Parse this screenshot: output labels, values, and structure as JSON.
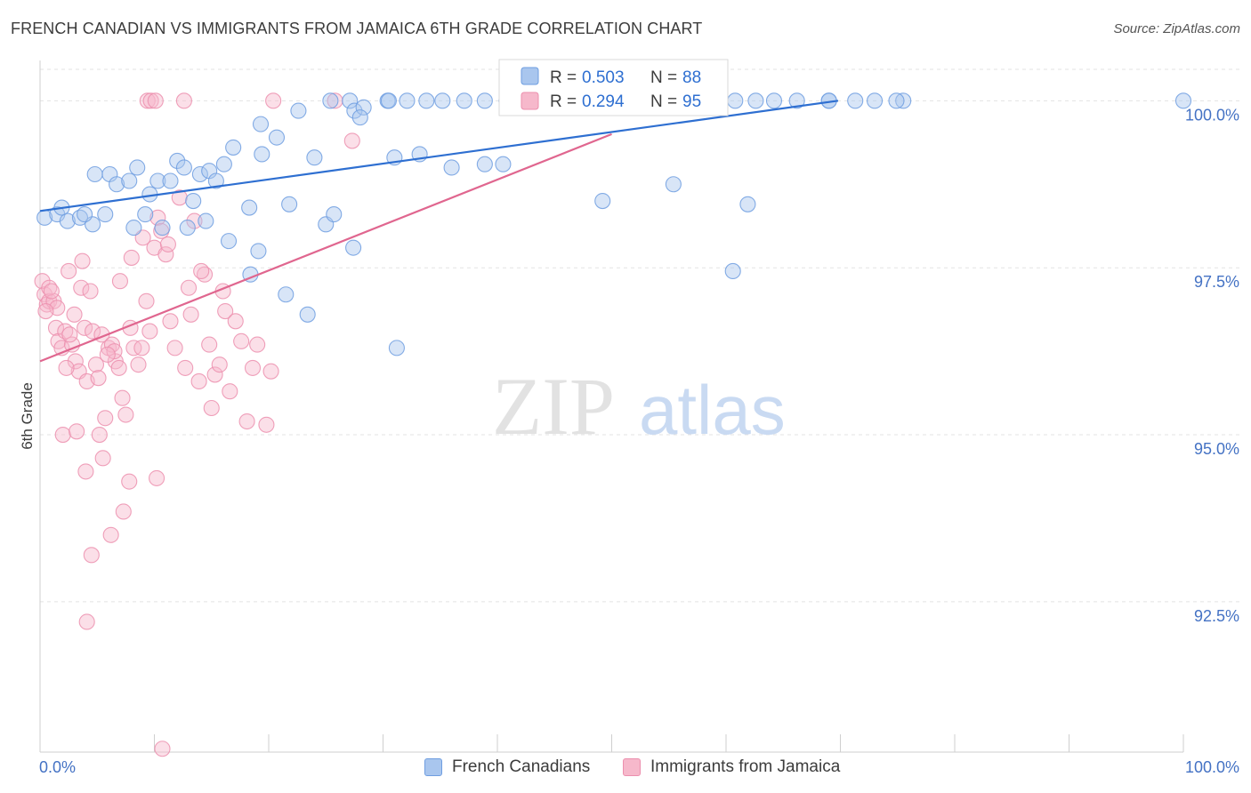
{
  "header": {
    "title": "FRENCH CANADIAN VS IMMIGRANTS FROM JAMAICA 6TH GRADE CORRELATION CHART",
    "source": "Source: ZipAtlas.com"
  },
  "watermark": {
    "part1": "ZIP",
    "part2": "atlas"
  },
  "colors": {
    "blue_fill": "#a9c6ee",
    "blue_stroke": "#6f9ee0",
    "blue_line": "#2e6fd1",
    "pink_fill": "#f6b8cb",
    "pink_stroke": "#ec8fae",
    "pink_line": "#e0668f",
    "axis_text": "#4472c4"
  },
  "chart_data": {
    "type": "scatter",
    "title": "FRENCH CANADIAN VS IMMIGRANTS FROM JAMAICA 6TH GRADE CORRELATION CHART",
    "xlabel": "",
    "ylabel": "6th Grade",
    "xlim": [
      0,
      100
    ],
    "ylim": [
      90.25,
      100.55
    ],
    "x_tick_labels": [
      "0.0%",
      "100.0%"
    ],
    "y_ticks": [
      92.5,
      95.0,
      97.5,
      100.0
    ],
    "y_tick_labels": [
      "92.5%",
      "95.0%",
      "97.5%",
      "100.0%"
    ],
    "grid": true,
    "legend_stats": [
      {
        "r_label": "R =",
        "r_value": "0.503",
        "n_label": "N =",
        "n_value": "88"
      },
      {
        "r_label": "R =",
        "r_value": "0.294",
        "n_label": "N =",
        "n_value": "95"
      }
    ],
    "series": [
      {
        "name": "French Canadians",
        "color": "blue",
        "trend": {
          "x": [
            0,
            69.8
          ],
          "y": [
            98.35,
            100.0
          ]
        },
        "points": [
          [
            0.4,
            98.25
          ],
          [
            1.5,
            98.3
          ],
          [
            2.4,
            98.2
          ],
          [
            3.5,
            98.25
          ],
          [
            4.6,
            98.15
          ],
          [
            3.9,
            98.3
          ],
          [
            1.9,
            98.4
          ],
          [
            5.7,
            98.3
          ],
          [
            4.8,
            98.9
          ],
          [
            6.1,
            98.9
          ],
          [
            6.7,
            98.75
          ],
          [
            7.8,
            98.8
          ],
          [
            8.5,
            99.0
          ],
          [
            9.6,
            98.6
          ],
          [
            10.3,
            98.8
          ],
          [
            11.4,
            98.8
          ],
          [
            12.0,
            99.1
          ],
          [
            12.6,
            99.0
          ],
          [
            13.4,
            98.5
          ],
          [
            14.0,
            98.9
          ],
          [
            14.8,
            98.95
          ],
          [
            15.4,
            98.8
          ],
          [
            16.1,
            99.05
          ],
          [
            9.2,
            98.3
          ],
          [
            10.7,
            98.1
          ],
          [
            12.9,
            98.1
          ],
          [
            14.5,
            98.2
          ],
          [
            16.5,
            97.9
          ],
          [
            16.9,
            99.3
          ],
          [
            18.3,
            98.4
          ],
          [
            19.4,
            99.2
          ],
          [
            19.3,
            99.65
          ],
          [
            20.7,
            99.45
          ],
          [
            21.8,
            98.45
          ],
          [
            22.6,
            99.85
          ],
          [
            25.0,
            98.15
          ],
          [
            25.4,
            100.0
          ],
          [
            27.1,
            100.0
          ],
          [
            30.4,
            100.0
          ],
          [
            32.1,
            100.0
          ],
          [
            33.8,
            100.0
          ],
          [
            37.1,
            100.0
          ],
          [
            38.9,
            100.0
          ],
          [
            40.8,
            100.0
          ],
          [
            42.9,
            100.0
          ],
          [
            44.9,
            100.0
          ],
          [
            45.4,
            100.0
          ],
          [
            46.7,
            100.0
          ],
          [
            48.6,
            100.0
          ],
          [
            50.5,
            100.0
          ],
          [
            52.1,
            100.0
          ],
          [
            54.5,
            100.0
          ],
          [
            56.6,
            100.0
          ],
          [
            58.3,
            100.0
          ],
          [
            60.8,
            100.0
          ],
          [
            62.6,
            100.0
          ],
          [
            64.2,
            100.0
          ],
          [
            66.2,
            100.0
          ],
          [
            69.0,
            100.0
          ],
          [
            71.3,
            100.0
          ],
          [
            73.0,
            100.0
          ],
          [
            75.5,
            100.0
          ],
          [
            30.5,
            100.0
          ],
          [
            24.0,
            99.15
          ],
          [
            27.5,
            99.85
          ],
          [
            28.3,
            99.9
          ],
          [
            28.0,
            99.75
          ],
          [
            31.0,
            99.15
          ],
          [
            33.2,
            99.2
          ],
          [
            36.0,
            99.0
          ],
          [
            38.9,
            99.05
          ],
          [
            40.5,
            99.05
          ],
          [
            49.2,
            98.5
          ],
          [
            55.4,
            98.75
          ],
          [
            60.6,
            97.45
          ],
          [
            61.9,
            98.45
          ],
          [
            69.0,
            100.0
          ],
          [
            74.9,
            100.0
          ],
          [
            100.0,
            100.0
          ],
          [
            27.4,
            97.8
          ],
          [
            21.5,
            97.1
          ],
          [
            23.4,
            96.8
          ],
          [
            31.2,
            96.3
          ],
          [
            18.4,
            97.4
          ],
          [
            25.7,
            98.3
          ],
          [
            19.1,
            97.75
          ],
          [
            8.2,
            98.1
          ],
          [
            35.2,
            100.0
          ]
        ]
      },
      {
        "name": "Immigrants from Jamaica",
        "color": "pink",
        "trend": {
          "x": [
            0,
            50.0
          ],
          "y": [
            96.1,
            99.5
          ]
        },
        "points": [
          [
            0.2,
            97.3
          ],
          [
            0.4,
            97.1
          ],
          [
            0.6,
            96.95
          ],
          [
            0.8,
            97.0
          ],
          [
            1.4,
            96.6
          ],
          [
            1.6,
            96.4
          ],
          [
            1.9,
            96.3
          ],
          [
            2.2,
            96.55
          ],
          [
            2.5,
            97.45
          ],
          [
            2.8,
            96.35
          ],
          [
            3.1,
            96.1
          ],
          [
            3.4,
            95.95
          ],
          [
            3.6,
            97.2
          ],
          [
            3.9,
            96.6
          ],
          [
            4.1,
            95.8
          ],
          [
            4.4,
            97.15
          ],
          [
            4.6,
            96.55
          ],
          [
            4.9,
            96.05
          ],
          [
            5.1,
            95.85
          ],
          [
            5.4,
            96.5
          ],
          [
            5.7,
            95.25
          ],
          [
            6.0,
            96.3
          ],
          [
            6.3,
            96.35
          ],
          [
            6.6,
            96.1
          ],
          [
            6.9,
            96.0
          ],
          [
            7.2,
            95.55
          ],
          [
            7.5,
            95.3
          ],
          [
            7.9,
            96.6
          ],
          [
            8.2,
            96.3
          ],
          [
            8.6,
            96.05
          ],
          [
            8.9,
            96.3
          ],
          [
            9.3,
            97.0
          ],
          [
            9.6,
            96.55
          ],
          [
            10.0,
            97.8
          ],
          [
            10.3,
            98.25
          ],
          [
            10.6,
            98.05
          ],
          [
            11.0,
            97.7
          ],
          [
            11.4,
            96.7
          ],
          [
            11.8,
            96.3
          ],
          [
            12.2,
            98.55
          ],
          [
            12.7,
            96.0
          ],
          [
            13.0,
            97.2
          ],
          [
            13.5,
            98.2
          ],
          [
            13.9,
            95.8
          ],
          [
            14.4,
            97.4
          ],
          [
            14.8,
            96.35
          ],
          [
            15.3,
            95.9
          ],
          [
            15.7,
            96.05
          ],
          [
            16.2,
            96.85
          ],
          [
            16.6,
            95.65
          ],
          [
            17.1,
            96.7
          ],
          [
            17.6,
            96.4
          ],
          [
            18.1,
            95.2
          ],
          [
            18.6,
            96.0
          ],
          [
            2.0,
            95.0
          ],
          [
            3.2,
            95.05
          ],
          [
            4.0,
            94.45
          ],
          [
            5.5,
            94.65
          ],
          [
            6.2,
            93.5
          ],
          [
            7.3,
            93.85
          ],
          [
            4.5,
            93.2
          ],
          [
            4.1,
            92.2
          ],
          [
            9.4,
            100.0
          ],
          [
            9.7,
            100.0
          ],
          [
            10.1,
            100.0
          ],
          [
            12.6,
            100.0
          ],
          [
            20.4,
            100.0
          ],
          [
            25.8,
            100.0
          ],
          [
            27.3,
            99.4
          ],
          [
            5.2,
            95.0
          ],
          [
            7.8,
            94.3
          ],
          [
            10.2,
            94.35
          ],
          [
            10.7,
            90.3
          ],
          [
            1.2,
            97.0
          ],
          [
            1.5,
            96.9
          ],
          [
            0.8,
            97.2
          ],
          [
            2.6,
            96.5
          ],
          [
            3.7,
            97.6
          ],
          [
            6.5,
            96.25
          ],
          [
            7.0,
            97.3
          ],
          [
            8.0,
            97.65
          ],
          [
            9.0,
            97.95
          ],
          [
            11.2,
            97.85
          ],
          [
            13.2,
            96.8
          ],
          [
            14.1,
            97.45
          ],
          [
            15.0,
            95.4
          ],
          [
            16.0,
            97.15
          ],
          [
            19.0,
            96.35
          ],
          [
            20.2,
            95.95
          ],
          [
            19.8,
            95.15
          ],
          [
            1.0,
            97.15
          ],
          [
            2.3,
            96.0
          ],
          [
            3.0,
            96.8
          ],
          [
            5.9,
            96.2
          ],
          [
            0.5,
            96.85
          ]
        ]
      }
    ]
  }
}
